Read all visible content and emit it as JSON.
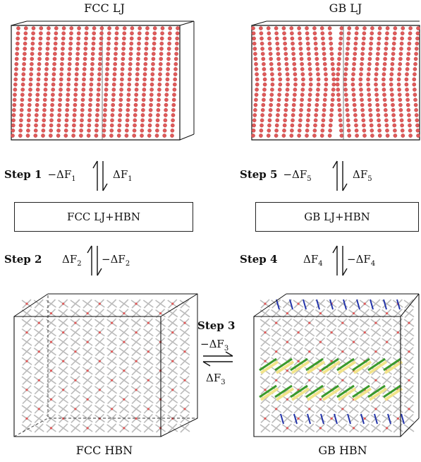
{
  "panels": {
    "top_left": {
      "label": "FCC LJ"
    },
    "top_right": {
      "label": "GB LJ"
    },
    "bottom_left": {
      "label": "FCC HBN"
    },
    "bottom_right": {
      "label": "GB HBN"
    }
  },
  "boxes": {
    "left": "FCC LJ+HBN",
    "right": "GB LJ+HBN"
  },
  "steps": {
    "step1": {
      "label": "Step 1",
      "fwd": "−ΔF",
      "fwd_sub": "1",
      "back": "ΔF",
      "back_sub": "1"
    },
    "step2": {
      "label": "Step 2",
      "fwd": "ΔF",
      "fwd_sub": "2",
      "back": "−ΔF",
      "back_sub": "2"
    },
    "step3": {
      "label": "Step 3",
      "top": "−ΔF",
      "top_sub": "3",
      "bottom": "ΔF",
      "bottom_sub": "3"
    },
    "step4": {
      "label": "Step 4",
      "fwd": "ΔF",
      "fwd_sub": "4",
      "back": "−ΔF",
      "back_sub": "4"
    },
    "step5": {
      "label": "Step 5",
      "fwd": "−ΔF",
      "fwd_sub": "5",
      "back": "ΔF",
      "back_sub": "5"
    }
  },
  "colors": {
    "atom": "#e05a5a",
    "lattice": "#bbbbbb",
    "green": "#3a9a2a",
    "yellow": "#f2e48a",
    "blue": "#2233aa"
  }
}
